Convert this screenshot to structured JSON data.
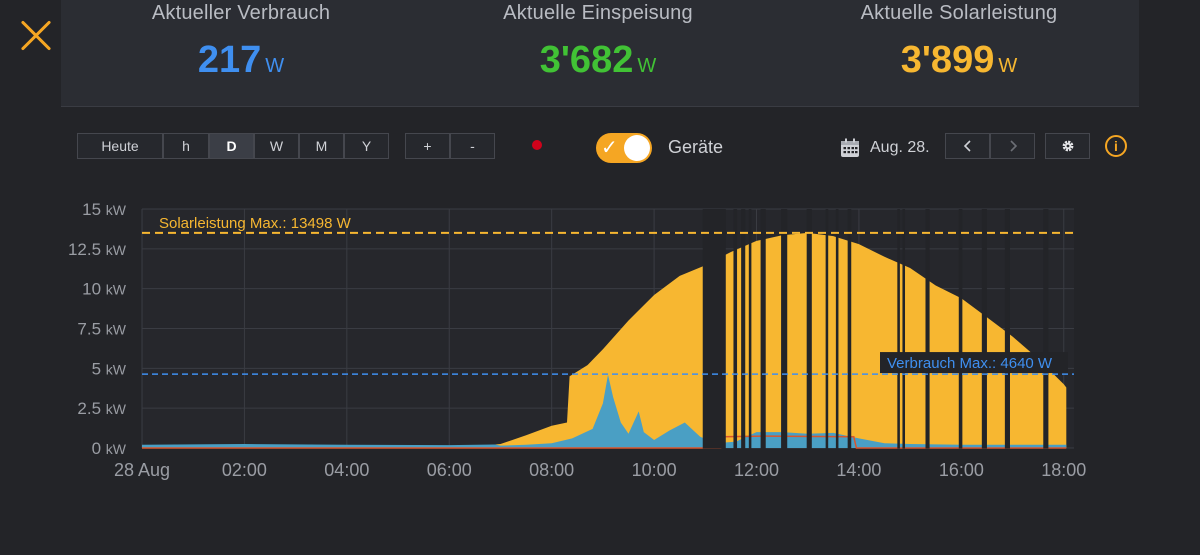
{
  "stats": [
    {
      "label": "Aktueller Verbrauch",
      "value": "217",
      "unit": "W",
      "color": "#3f8ff0"
    },
    {
      "label": "Aktuelle Einspeisung",
      "value": "3'682",
      "unit": "W",
      "color": "#41c235"
    },
    {
      "label": "Aktuelle Solarleistung",
      "value": "3'899",
      "unit": "W",
      "color": "#f7b731"
    }
  ],
  "toolbar": {
    "range_buttons": [
      "Heute",
      "h",
      "D",
      "W",
      "M",
      "Y"
    ],
    "active_range": "D",
    "zoom_in": "+",
    "zoom_out": "-",
    "devices_toggle_label": "Geräte",
    "devices_toggle_on": true,
    "date_label": "Aug. 28.",
    "prev_icon": "chevron-left-icon",
    "next_icon": "chevron-right-icon",
    "settings_icon": "gear-icon",
    "info_icon": "info-icon",
    "info_glyph": "i"
  },
  "chart_data": {
    "type": "area",
    "x_ticks": [
      "28 Aug",
      "02:00",
      "04:00",
      "06:00",
      "08:00",
      "10:00",
      "12:00",
      "14:00",
      "16:00",
      "18:00"
    ],
    "y_ticks": [
      "0",
      "2.5",
      "5",
      "7.5",
      "10",
      "12.5",
      "15"
    ],
    "y_unit": "kW",
    "xlim_hours": [
      0,
      18.2
    ],
    "ylim_kw": [
      0,
      15
    ],
    "grid": true,
    "annotations": [
      {
        "label": "Solarleistung Max.: 13498 W",
        "value_kw": 13.498,
        "color": "#f7b731"
      },
      {
        "label": "Verbrauch Max.: 4640 W",
        "value_kw": 4.64,
        "color": "#3f8ff0"
      }
    ],
    "series": [
      {
        "name": "Solarleistung",
        "color": "#f7b731",
        "points": [
          [
            0,
            0.1
          ],
          [
            6.5,
            0.1
          ],
          [
            7,
            0.25
          ],
          [
            7.5,
            0.8
          ],
          [
            8,
            1.4
          ],
          [
            8.3,
            1.6
          ],
          [
            8.35,
            4.5
          ],
          [
            8.7,
            5.2
          ],
          [
            9,
            6.2
          ],
          [
            9.5,
            8.0
          ],
          [
            10,
            9.6
          ],
          [
            10.5,
            10.8
          ],
          [
            10.95,
            11.4
          ],
          [
            11.5,
            12.3
          ],
          [
            12,
            13.0
          ],
          [
            12.5,
            13.35
          ],
          [
            13,
            13.5
          ],
          [
            13.5,
            13.3
          ],
          [
            14,
            12.8
          ],
          [
            14.5,
            12.0
          ],
          [
            15,
            11.3
          ],
          [
            15.5,
            10.2
          ],
          [
            16,
            9.4
          ],
          [
            16.5,
            8.2
          ],
          [
            17,
            7.0
          ],
          [
            17.5,
            5.6
          ],
          [
            18,
            4.0
          ],
          [
            18.05,
            3.8
          ]
        ]
      },
      {
        "name": "Verbrauch",
        "color": "#4a9fc4",
        "points": [
          [
            0,
            0.2
          ],
          [
            2,
            0.25
          ],
          [
            4,
            0.2
          ],
          [
            6,
            0.18
          ],
          [
            6.9,
            0.22
          ],
          [
            7,
            0.15
          ],
          [
            7.5,
            0.2
          ],
          [
            8,
            0.3
          ],
          [
            8.4,
            0.6
          ],
          [
            8.8,
            1.2
          ],
          [
            9,
            2.8
          ],
          [
            9.1,
            4.6
          ],
          [
            9.2,
            3.2
          ],
          [
            9.35,
            1.6
          ],
          [
            9.5,
            0.9
          ],
          [
            9.7,
            2.3
          ],
          [
            9.8,
            1.0
          ],
          [
            10,
            0.5
          ],
          [
            10.3,
            1.1
          ],
          [
            10.6,
            1.6
          ],
          [
            10.9,
            0.7
          ],
          [
            11.2,
            0.3
          ],
          [
            11.6,
            0.4
          ],
          [
            11.8,
            0.7
          ],
          [
            12,
            1.0
          ],
          [
            12.5,
            1.0
          ],
          [
            13,
            0.9
          ],
          [
            13.5,
            0.95
          ],
          [
            14,
            0.6
          ],
          [
            14.5,
            0.3
          ],
          [
            15,
            0.25
          ],
          [
            16,
            0.2
          ],
          [
            17,
            0.2
          ],
          [
            18,
            0.2
          ],
          [
            18.05,
            0.2
          ]
        ]
      },
      {
        "name": "Gerät",
        "color": "#d9552b",
        "points": [
          [
            0,
            0
          ],
          [
            11.3,
            0
          ],
          [
            11.35,
            0.7
          ],
          [
            12.2,
            0.75
          ],
          [
            13.9,
            0.7
          ],
          [
            13.95,
            0
          ],
          [
            18.05,
            0
          ]
        ]
      }
    ],
    "data_gaps_hours": [
      [
        10.95,
        11.4
      ],
      [
        11.55,
        11.62
      ],
      [
        11.7,
        11.78
      ],
      [
        11.85,
        11.9
      ],
      [
        12.08,
        12.18
      ],
      [
        12.48,
        12.6
      ],
      [
        12.98,
        13.08
      ],
      [
        13.35,
        13.4
      ],
      [
        13.55,
        13.6
      ],
      [
        13.78,
        13.85
      ],
      [
        14.75,
        14.8
      ],
      [
        14.85,
        14.9
      ],
      [
        15.3,
        15.38
      ],
      [
        15.95,
        16.02
      ],
      [
        16.4,
        16.5
      ],
      [
        16.85,
        16.95
      ],
      [
        17.6,
        17.7
      ]
    ]
  }
}
